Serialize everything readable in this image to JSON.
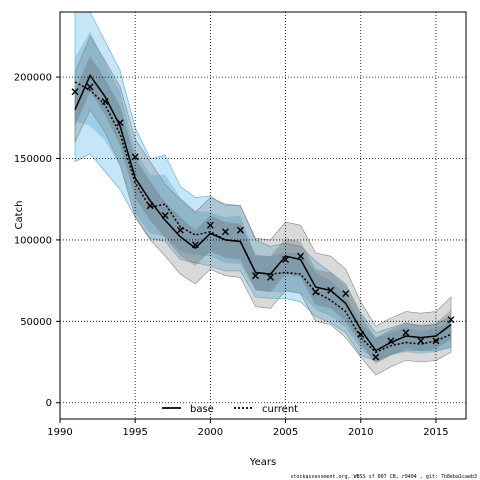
{
  "chart_data": {
    "type": "line",
    "xlabel": "Years",
    "ylabel": "Catch",
    "xlim": [
      1990,
      2017
    ],
    "ylim": [
      -10000,
      240000
    ],
    "x_ticks": [
      1990,
      1995,
      2000,
      2005,
      2010,
      2015
    ],
    "y_ticks": [
      0,
      50000,
      100000,
      150000,
      200000
    ],
    "grid": true,
    "legend_position": "bottom-center",
    "x": [
      1991,
      1992,
      1993,
      1994,
      1995,
      1996,
      1997,
      1998,
      1999,
      2000,
      2001,
      2002,
      2003,
      2004,
      2005,
      2006,
      2007,
      2008,
      2009,
      2010,
      2011,
      2012,
      2013,
      2014,
      2015,
      2016
    ],
    "observed": {
      "marker": "x",
      "values": [
        191000,
        194000,
        185000,
        172000,
        151000,
        121000,
        115000,
        106000,
        97000,
        109000,
        105000,
        106000,
        78000,
        77000,
        88000,
        90000,
        68000,
        69000,
        67000,
        42000,
        28000,
        38000,
        43000,
        38000,
        38000,
        51000
      ]
    },
    "series": [
      {
        "name": "base",
        "style": "solid",
        "color": "#000000",
        "values": [
          180000,
          201000,
          188000,
          170000,
          138000,
          124000,
          112000,
          102000,
          95000,
          104000,
          100000,
          99000,
          80000,
          79000,
          90000,
          88000,
          71000,
          69000,
          61000,
          45000,
          32000,
          37000,
          41000,
          40000,
          41000,
          48000
        ],
        "band_inner": [
          [
            170000,
            192000
          ],
          [
            191000,
            213000
          ],
          [
            177000,
            199000
          ],
          [
            158000,
            182000
          ],
          [
            126000,
            150000
          ],
          [
            112000,
            136000
          ],
          [
            101000,
            123000
          ],
          [
            90000,
            114000
          ],
          [
            84000,
            106000
          ],
          [
            93000,
            115000
          ],
          [
            89000,
            111000
          ],
          [
            88000,
            110000
          ],
          [
            69000,
            91000
          ],
          [
            68000,
            90000
          ],
          [
            79000,
            101000
          ],
          [
            77000,
            99000
          ],
          [
            60000,
            82000
          ],
          [
            58000,
            80000
          ],
          [
            50000,
            72000
          ],
          [
            36000,
            54000
          ],
          [
            24000,
            40000
          ],
          [
            29000,
            45000
          ],
          [
            33000,
            49000
          ],
          [
            32000,
            48000
          ],
          [
            33000,
            49000
          ],
          [
            39000,
            57000
          ]
        ],
        "band_outer": [
          [
            160000,
            203000
          ],
          [
            180000,
            225000
          ],
          [
            166000,
            210000
          ],
          [
            146000,
            194000
          ],
          [
            114000,
            162000
          ],
          [
            100000,
            148000
          ],
          [
            90000,
            134000
          ],
          [
            79000,
            125000
          ],
          [
            73000,
            117000
          ],
          [
            82000,
            126000
          ],
          [
            78000,
            122000
          ],
          [
            77000,
            121000
          ],
          [
            59000,
            101000
          ],
          [
            58000,
            100000
          ],
          [
            69000,
            111000
          ],
          [
            67000,
            109000
          ],
          [
            50000,
            92000
          ],
          [
            48000,
            90000
          ],
          [
            40000,
            82000
          ],
          [
            28000,
            62000
          ],
          [
            17000,
            47000
          ],
          [
            22000,
            52000
          ],
          [
            26000,
            56000
          ],
          [
            25000,
            55000
          ],
          [
            26000,
            56000
          ],
          [
            31000,
            65000
          ]
        ],
        "band_color": "#777777"
      },
      {
        "name": "current",
        "style": "dashed",
        "color": "#000000",
        "values": [
          197000,
          192000,
          183000,
          165000,
          135000,
          120000,
          122000,
          108000,
          103000,
          105000,
          100000,
          99000,
          80000,
          79000,
          80000,
          79000,
          68000,
          63000,
          56000,
          40000,
          31000,
          35000,
          37000,
          36000,
          38000,
          42000
        ],
        "band_inner": [
          [
            173000,
            212000
          ],
          [
            170000,
            228000
          ],
          [
            161000,
            209000
          ],
          [
            145000,
            191000
          ],
          [
            116000,
            155000
          ],
          [
            104000,
            140000
          ],
          [
            102000,
            140000
          ],
          [
            93000,
            126000
          ],
          [
            91000,
            118000
          ],
          [
            90000,
            117000
          ],
          [
            86000,
            114000
          ],
          [
            85000,
            115000
          ],
          [
            69000,
            90000
          ],
          [
            68000,
            90000
          ],
          [
            68000,
            92000
          ],
          [
            67000,
            92000
          ],
          [
            57000,
            80000
          ],
          [
            53000,
            75000
          ],
          [
            46000,
            66000
          ],
          [
            33000,
            49000
          ],
          [
            25000,
            40000
          ],
          [
            29000,
            43000
          ],
          [
            31000,
            46000
          ],
          [
            30000,
            44000
          ],
          [
            31000,
            46000
          ],
          [
            34000,
            50000
          ]
        ],
        "band_outer": [
          [
            148000,
            240000
          ],
          [
            153000,
            240000
          ],
          [
            142000,
            222000
          ],
          [
            131000,
            204000
          ],
          [
            114000,
            169000
          ],
          [
            101000,
            150000
          ],
          [
            99000,
            152000
          ],
          [
            88000,
            133000
          ],
          [
            86000,
            126000
          ],
          [
            84000,
            127000
          ],
          [
            81000,
            121000
          ],
          [
            81000,
            121000
          ],
          [
            65000,
            100000
          ],
          [
            64000,
            96000
          ],
          [
            64000,
            98000
          ],
          [
            62000,
            96000
          ],
          [
            53000,
            87000
          ],
          [
            49000,
            80000
          ],
          [
            43000,
            73000
          ],
          [
            29000,
            55000
          ],
          [
            26000,
            43000
          ],
          [
            30000,
            46000
          ],
          [
            32000,
            49000
          ],
          [
            32000,
            47000
          ],
          [
            32000,
            48000
          ],
          [
            34000,
            53000
          ]
        ],
        "band_color": "#7fc7ea"
      }
    ]
  },
  "legend": {
    "base_label": "base",
    "current_label": "current"
  },
  "footer_text": "stockassessment.org, WBSS sf 007 CB, r9404 , git: 7b8eba1caeb3"
}
